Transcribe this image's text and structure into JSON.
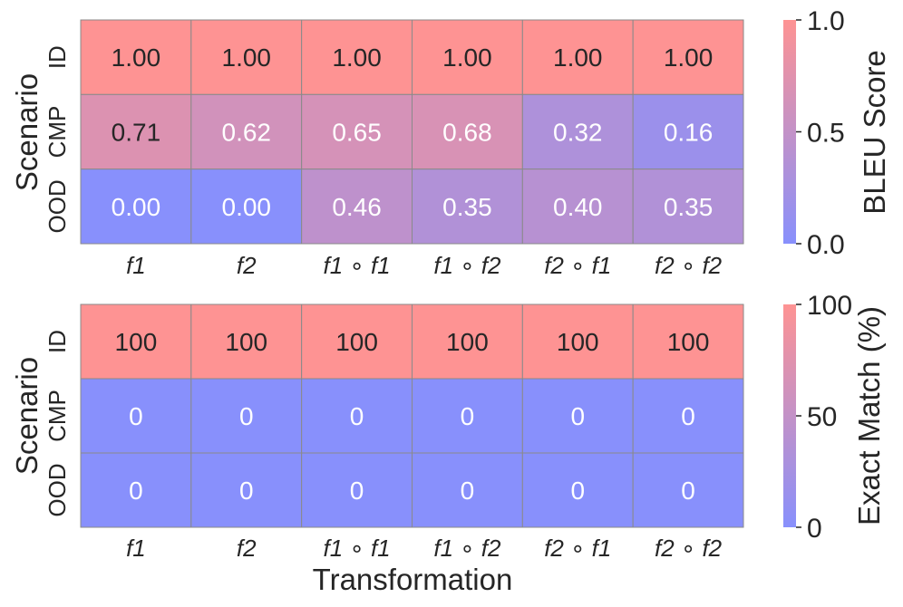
{
  "figure": {
    "xlabel": "Transformation"
  },
  "colors": {
    "low": "#8890fc",
    "high": "#fe9393",
    "grid": "#8a8a8a",
    "text_dark": "#262626",
    "text_light": "#ffffff"
  },
  "chart_data": [
    {
      "type": "heatmap",
      "ylabel": "Scenario",
      "x_categories": [
        "f1",
        "f2",
        "f1 ∘ f1",
        "f1 ∘ f2",
        "f2 ∘ f1",
        "f2 ∘ f2"
      ],
      "y_categories": [
        "ID",
        "CMP",
        "OOD"
      ],
      "values": [
        [
          1.0,
          1.0,
          1.0,
          1.0,
          1.0,
          1.0
        ],
        [
          0.71,
          0.62,
          0.65,
          0.68,
          0.32,
          0.16
        ],
        [
          0.0,
          0.0,
          0.46,
          0.35,
          0.4,
          0.35
        ]
      ],
      "value_format": "0.00",
      "vmin": 0,
      "vmax": 1,
      "colorbar": {
        "label": "BLEU Score",
        "ticks": [
          "0.0",
          "0.5",
          "1.0"
        ],
        "tick_values": [
          0,
          0.5,
          1.0
        ]
      }
    },
    {
      "type": "heatmap",
      "ylabel": "Scenario",
      "x_categories": [
        "f1",
        "f2",
        "f1 ∘ f1",
        "f1 ∘ f2",
        "f2 ∘ f1",
        "f2 ∘ f2"
      ],
      "y_categories": [
        "ID",
        "CMP",
        "OOD"
      ],
      "values": [
        [
          100,
          100,
          100,
          100,
          100,
          100
        ],
        [
          0,
          0,
          0,
          0,
          0,
          0
        ],
        [
          0,
          0,
          0,
          0,
          0,
          0
        ]
      ],
      "value_format": "0",
      "vmin": 0,
      "vmax": 100,
      "colorbar": {
        "label": "Exact Match (%)",
        "ticks": [
          "0",
          "50",
          "100"
        ],
        "tick_values": [
          0,
          50,
          100
        ]
      }
    }
  ]
}
